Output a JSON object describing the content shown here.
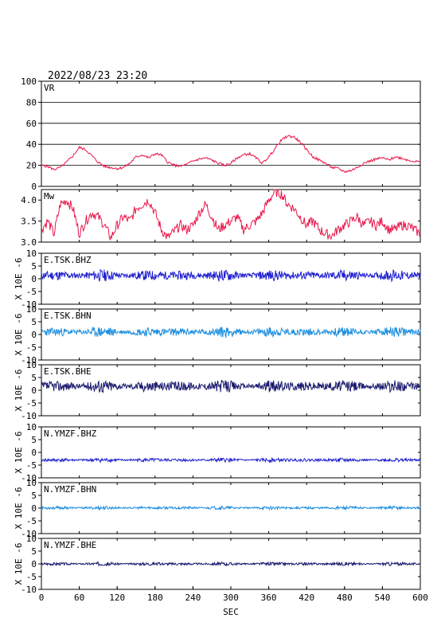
{
  "header": {
    "timestamp": "2022/08/23 23:20"
  },
  "chart_data": [
    {
      "type": "line",
      "panel": "vr",
      "title": "VR",
      "ylim": [
        0,
        100
      ],
      "yticks": [
        "100",
        "80",
        "60",
        "40",
        "20",
        "0"
      ],
      "grid": true,
      "color": "#e8174a",
      "x": [
        0,
        10,
        20,
        30,
        40,
        50,
        60,
        70,
        80,
        90,
        100,
        110,
        120,
        130,
        140,
        150,
        160,
        170,
        180,
        190,
        200,
        210,
        220,
        230,
        240,
        250,
        260,
        270,
        280,
        290,
        300,
        310,
        320,
        330,
        340,
        350,
        360,
        370,
        380,
        390,
        400,
        410,
        420,
        430,
        440,
        450,
        460,
        470,
        480,
        490,
        500,
        510,
        520,
        530,
        540,
        550,
        560,
        570,
        580,
        590,
        600
      ],
      "values": [
        20,
        19,
        16,
        18,
        23,
        29,
        37,
        35,
        29,
        23,
        19,
        18,
        17,
        18,
        22,
        28,
        30,
        27,
        31,
        30,
        23,
        20,
        19,
        21,
        24,
        26,
        27,
        25,
        22,
        20,
        22,
        27,
        30,
        31,
        27,
        22,
        28,
        36,
        44,
        48,
        47,
        42,
        35,
        28,
        25,
        22,
        18,
        17,
        14,
        15,
        18,
        22,
        24,
        26,
        27,
        25,
        28,
        27,
        25,
        24,
        23
      ]
    },
    {
      "type": "line",
      "panel": "mw",
      "title": "Mw",
      "ylim": [
        3.0,
        4.25
      ],
      "yticks": [
        "4.0",
        "3.5",
        "3.0"
      ],
      "grid": false,
      "color": "#e8174a",
      "x": [
        0,
        10,
        20,
        30,
        40,
        50,
        60,
        70,
        80,
        90,
        100,
        110,
        120,
        130,
        140,
        150,
        160,
        170,
        180,
        190,
        200,
        210,
        220,
        230,
        240,
        250,
        260,
        270,
        280,
        290,
        300,
        310,
        320,
        330,
        340,
        350,
        360,
        370,
        380,
        390,
        400,
        410,
        420,
        430,
        440,
        450,
        460,
        470,
        480,
        490,
        500,
        510,
        520,
        530,
        540,
        550,
        560,
        570,
        580,
        590,
        600
      ],
      "values": [
        3.3,
        3.5,
        3.2,
        3.9,
        4.0,
        3.8,
        3.2,
        3.5,
        3.7,
        3.6,
        3.4,
        3.1,
        3.4,
        3.6,
        3.5,
        3.8,
        3.9,
        4.0,
        3.7,
        3.3,
        3.1,
        3.25,
        3.4,
        3.3,
        3.4,
        3.7,
        3.9,
        3.6,
        3.3,
        3.4,
        3.5,
        3.6,
        3.3,
        3.4,
        3.5,
        3.7,
        4.0,
        4.2,
        4.15,
        3.9,
        3.8,
        3.6,
        3.4,
        3.5,
        3.3,
        3.2,
        3.15,
        3.3,
        3.4,
        3.5,
        3.6,
        3.4,
        3.5,
        3.4,
        3.5,
        3.3,
        3.3,
        3.4,
        3.4,
        3.3,
        3.2
      ]
    },
    {
      "type": "line",
      "panel": "wave",
      "title": "E.TSK.BHZ",
      "ylim": [
        -10,
        10
      ],
      "yticks": [
        "10",
        "5",
        "0",
        "-5",
        "-10"
      ],
      "offset": 1.3,
      "amplitude": 1.0,
      "color": "#1f1fd0",
      "seed": 11
    },
    {
      "type": "line",
      "panel": "wave",
      "title": "E.TSK.BHN",
      "ylim": [
        -10,
        10
      ],
      "yticks": [
        "10",
        "5",
        "0",
        "-5",
        "-10"
      ],
      "offset": 1.0,
      "amplitude": 0.9,
      "color": "#1e8fe0",
      "seed": 23
    },
    {
      "type": "line",
      "panel": "wave",
      "title": "E.TSK.BHE",
      "ylim": [
        -10,
        10
      ],
      "yticks": [
        "10",
        "5",
        "0",
        "-5",
        "-10"
      ],
      "offset": 1.6,
      "amplitude": 1.1,
      "color": "#1a1a6e",
      "seed": 37
    },
    {
      "type": "line",
      "panel": "wave",
      "title": "N.YMZF.BHZ",
      "ylim": [
        -10,
        10
      ],
      "yticks": [
        "10",
        "5",
        "0",
        "-5",
        "-10"
      ],
      "offset": -3.0,
      "amplitude": 0.35,
      "color": "#1f1fd0",
      "seed": 41
    },
    {
      "type": "line",
      "panel": "wave",
      "title": "N.YMZF.BHN",
      "ylim": [
        -10,
        10
      ],
      "yticks": [
        "10",
        "5",
        "0",
        "-5",
        "-10"
      ],
      "offset": 0.1,
      "amplitude": 0.3,
      "color": "#1e8fe0",
      "seed": 53
    },
    {
      "type": "line",
      "panel": "wave",
      "title": "N.YMZF.BHE",
      "ylim": [
        -10,
        10
      ],
      "yticks": [
        "10",
        "5",
        "0",
        "-5",
        "-10"
      ],
      "offset": 0.0,
      "amplitude": 0.3,
      "color": "#1a1a6e",
      "seed": 67
    }
  ],
  "axes": {
    "xlim": [
      0,
      600
    ],
    "xticks": [
      "0",
      "60",
      "120",
      "180",
      "240",
      "300",
      "360",
      "420",
      "480",
      "540",
      "600"
    ],
    "xlabel": "SEC",
    "wave_ylabel": "X 10E -6"
  }
}
